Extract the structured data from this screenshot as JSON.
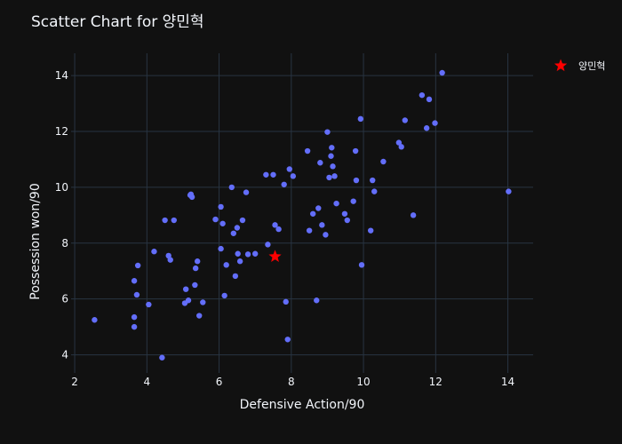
{
  "chart_data": {
    "type": "scatter",
    "title": "Scatter Chart for 양민혁",
    "xlabel": "Defensive Action/90",
    "ylabel": "Possession won/90",
    "xlim": [
      1.9,
      14.7
    ],
    "ylim": [
      3.35,
      14.8
    ],
    "xticks": [
      2,
      4,
      6,
      8,
      10,
      12,
      14
    ],
    "yticks": [
      4,
      6,
      8,
      10,
      12,
      14
    ],
    "grid": true,
    "legend_position": "top-right",
    "colors": {
      "background": "#111111",
      "points": "#636efa",
      "highlight": "#ff0000",
      "grid": "#283442",
      "text": "#f2f5fa"
    },
    "series": [
      {
        "marker": "circle",
        "x": [
          2.55,
          3.65,
          3.65,
          3.65,
          3.72,
          3.75,
          4.05,
          4.2,
          4.42,
          4.5,
          4.6,
          4.65,
          4.75,
          5.05,
          5.08,
          5.15,
          5.2,
          5.22,
          5.25,
          5.33,
          5.35,
          5.4,
          5.45,
          5.55,
          5.9,
          6.05,
          6.05,
          6.1,
          6.15,
          6.2,
          6.35,
          6.4,
          6.45,
          6.5,
          6.52,
          6.58,
          6.65,
          6.75,
          6.8,
          7.0,
          7.3,
          7.35,
          7.5,
          7.55,
          7.65,
          7.8,
          7.85,
          7.9,
          7.95,
          8.05,
          8.45,
          8.5,
          8.6,
          8.7,
          8.75,
          8.8,
          8.85,
          8.95,
          9.0,
          9.05,
          9.1,
          9.12,
          9.15,
          9.2,
          9.25,
          9.48,
          9.55,
          9.72,
          9.78,
          9.8,
          9.92,
          9.95,
          10.2,
          10.25,
          10.3,
          10.55,
          10.98,
          11.05,
          11.15,
          11.38,
          11.62,
          11.75,
          11.82,
          11.98,
          12.18,
          14.02
        ],
        "y": [
          5.25,
          5.0,
          5.35,
          6.65,
          6.15,
          7.2,
          5.8,
          7.7,
          3.9,
          8.82,
          7.55,
          7.4,
          8.82,
          5.85,
          6.35,
          5.95,
          9.72,
          9.75,
          9.65,
          6.5,
          7.1,
          7.35,
          5.4,
          5.88,
          8.85,
          7.8,
          9.3,
          8.7,
          6.12,
          7.22,
          10.0,
          8.35,
          6.82,
          8.55,
          7.62,
          7.35,
          8.82,
          9.82,
          7.6,
          7.62,
          10.45,
          7.95,
          10.45,
          8.65,
          8.5,
          10.1,
          5.9,
          4.55,
          10.65,
          10.4,
          11.3,
          8.45,
          9.05,
          5.95,
          9.25,
          10.88,
          8.65,
          8.3,
          11.98,
          10.35,
          11.12,
          11.42,
          10.75,
          10.4,
          9.42,
          9.05,
          8.82,
          9.5,
          11.3,
          10.25,
          12.45,
          7.22,
          8.45,
          10.25,
          9.85,
          10.92,
          11.6,
          11.45,
          12.4,
          9.0,
          13.3,
          12.12,
          13.15,
          12.3,
          14.1,
          9.85
        ]
      },
      {
        "name": "양민혁",
        "marker": "star",
        "x": [
          7.55
        ],
        "y": [
          7.52
        ]
      }
    ]
  }
}
